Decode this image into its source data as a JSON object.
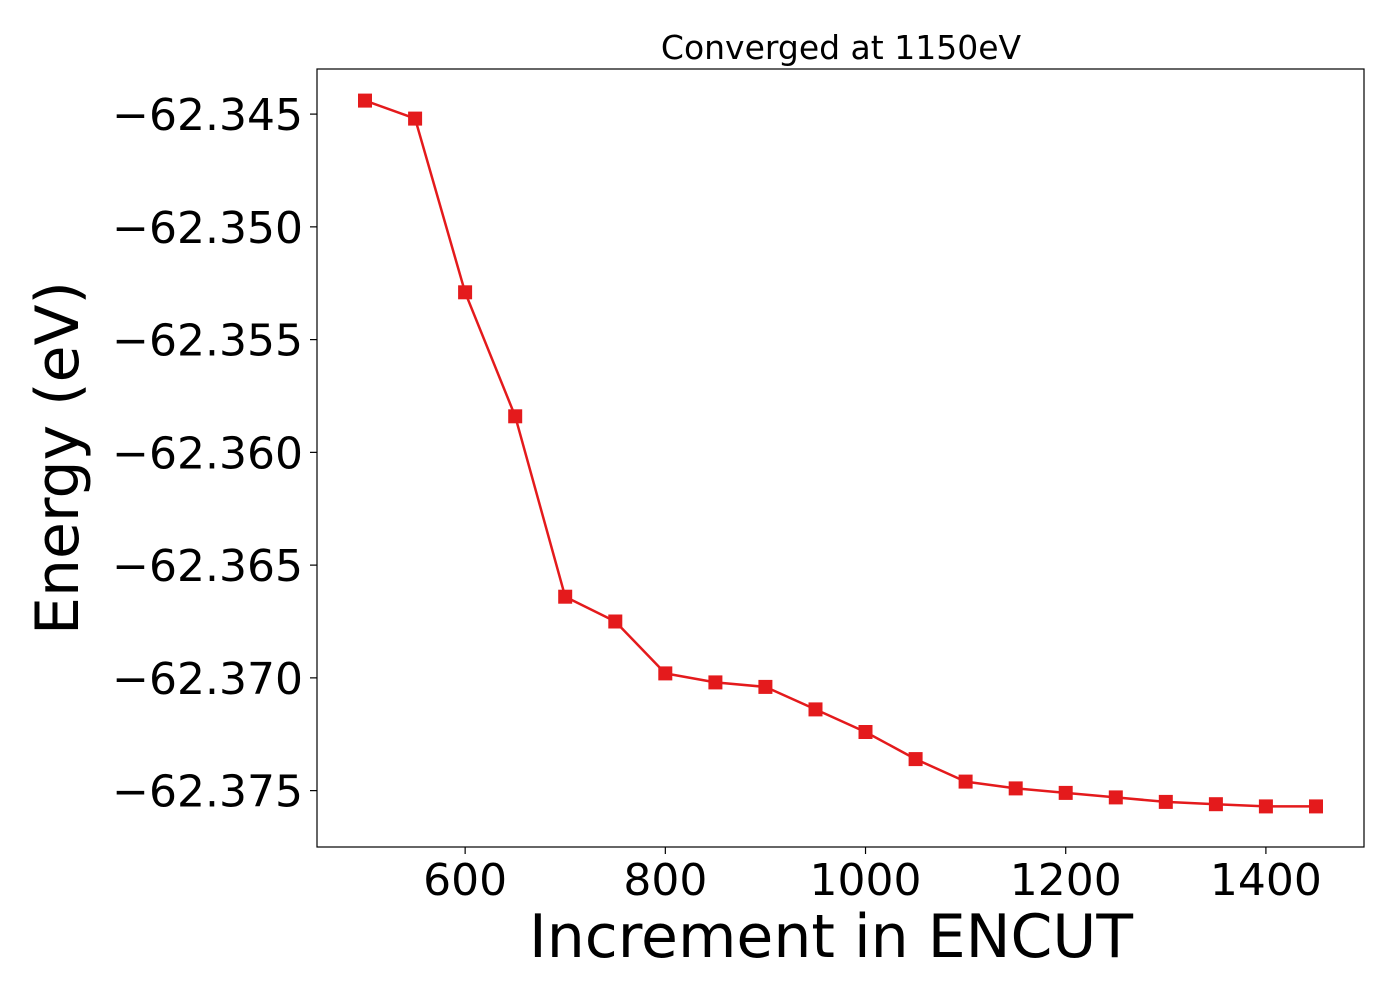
{
  "chart_data": {
    "type": "line",
    "title": "Converged at 1150eV",
    "xlabel": "Increment in ENCUT",
    "ylabel": "Energy (eV)",
    "xlim": [
      452,
      1498
    ],
    "ylim": [
      -62.3775,
      -62.343
    ],
    "x_ticks": [
      600,
      800,
      1000,
      1200,
      1400
    ],
    "y_ticks": [
      -62.345,
      -62.35,
      -62.355,
      -62.36,
      -62.365,
      -62.37,
      -62.375
    ],
    "y_tick_labels": [
      "−62.345",
      "−62.350",
      "−62.355",
      "−62.360",
      "−62.365",
      "−62.370",
      "−62.375"
    ],
    "grid": false,
    "series": [
      {
        "color": "#e41a1c",
        "marker": "square",
        "x": [
          500,
          550,
          600,
          650,
          700,
          750,
          800,
          850,
          900,
          950,
          1000,
          1050,
          1100,
          1150,
          1200,
          1250,
          1300,
          1350,
          1400,
          1450
        ],
        "y": [
          -62.3444,
          -62.3452,
          -62.3529,
          -62.3584,
          -62.3664,
          -62.3675,
          -62.3698,
          -62.3702,
          -62.3704,
          -62.3714,
          -62.3724,
          -62.3736,
          -62.3746,
          -62.3749,
          -62.3751,
          -62.3753,
          -62.3755,
          -62.3756,
          -62.3757,
          -62.3757
        ]
      }
    ]
  }
}
